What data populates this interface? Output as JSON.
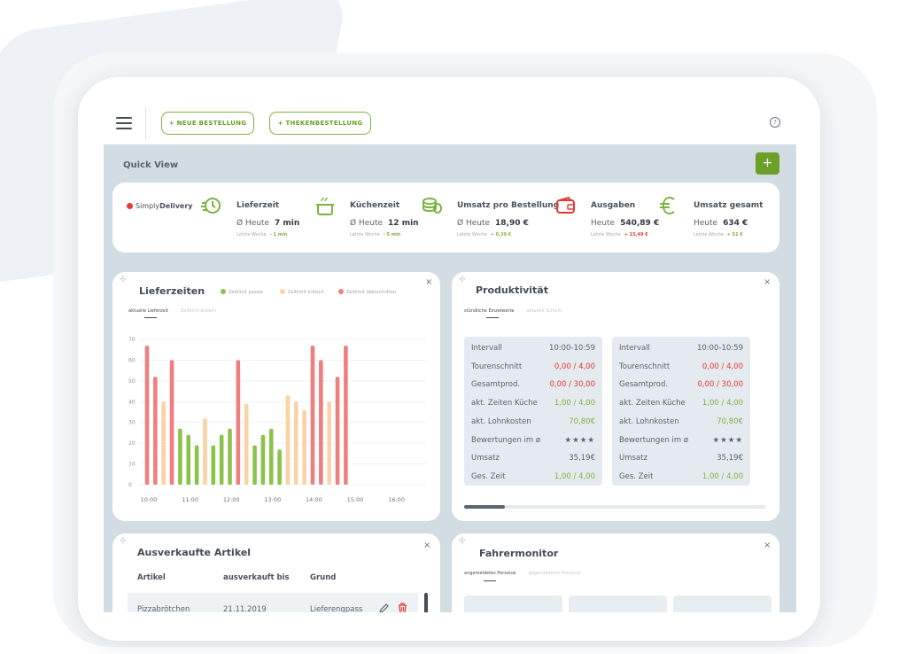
{
  "toolbar": {
    "new_order": "+ NEUE BESTELLUNG",
    "counter_order": "+ THEKENBESTELLUNG",
    "help": "?"
  },
  "quick_view": {
    "title": "Quick View",
    "add": "+",
    "logo_plain": "Simply",
    "logo_bold": "Delivery",
    "kpis": [
      {
        "label": "Lieferzeit",
        "prefix": "Ø Heute",
        "value": "7 min",
        "sub_prefix": "Letzte Woche",
        "delta": "- 1 min",
        "delta_color": "#7cb342",
        "icon": "clock-icon"
      },
      {
        "label": "Küchenzeit",
        "prefix": "Ø Heute",
        "value": "12 min",
        "sub_prefix": "Letzte Woche",
        "delta": "- 5 min",
        "delta_color": "#7cb342",
        "icon": "pot-icon"
      },
      {
        "label": "Umsatz pro Bestellung",
        "prefix": "Ø Heute",
        "value": "18,90 €",
        "sub_prefix": "Letzte Woche",
        "delta": "+ 0,39 €",
        "delta_color": "#7cb342",
        "icon": "coins-icon"
      },
      {
        "label": "Ausgaben",
        "prefix": "Heute",
        "value": "540,89 €",
        "sub_prefix": "Letzte Woche",
        "delta": "+ 15,49 €",
        "delta_color": "#e53935",
        "icon": "wallet-icon"
      },
      {
        "label": "Umsatz gesamt",
        "prefix": "Heute",
        "value": "634 €",
        "sub_prefix": "Letzte Woche",
        "delta": "+ 51 €",
        "delta_color": "#7cb342",
        "icon": "euro-icon"
      }
    ]
  },
  "lieferzeiten": {
    "title": "Lieferzeiten",
    "close": "×",
    "tabs": [
      "aktuelle Lieferzeit",
      "Zeitlimit ändern"
    ],
    "legend": [
      {
        "label": "Zeitlimit passte",
        "color": "#8bc34a"
      },
      {
        "label": "Zeitlimit kritisch",
        "color": "#f8d4a4"
      },
      {
        "label": "Zeitlimit überschritten",
        "color": "#ef7f7f"
      }
    ]
  },
  "chart_data": {
    "type": "bar",
    "title": "Lieferzeiten",
    "y_ticks": [
      0,
      10,
      20,
      30,
      40,
      50,
      60,
      70
    ],
    "x_ticks": [
      "10:00",
      "11:00",
      "12:00",
      "13:00",
      "14:00",
      "15:00",
      "16:00"
    ],
    "ylim": [
      0,
      70
    ],
    "grid": true,
    "legend_position": "top",
    "values": [
      67,
      52,
      40,
      60,
      27,
      24,
      19,
      32,
      19,
      24,
      27,
      60,
      39,
      19,
      24,
      27,
      17,
      43,
      40,
      36,
      67,
      60,
      40,
      52,
      67
    ],
    "status": [
      "r",
      "r",
      "y",
      "r",
      "g",
      "g",
      "g",
      "y",
      "g",
      "g",
      "g",
      "r",
      "y",
      "g",
      "g",
      "g",
      "g",
      "y",
      "y",
      "y",
      "r",
      "r",
      "y",
      "r",
      "r"
    ],
    "status_colors": {
      "g": "#8bc34a",
      "y": "#f8d4a4",
      "r": "#ef7f7f"
    }
  },
  "produktivitaet": {
    "title": "Produktivität",
    "close": "×",
    "tabs": [
      "stündliche Einzelwerte",
      "aktuelle Schicht"
    ],
    "panels": [
      {
        "rows": [
          {
            "label": "Intervall",
            "value": "10:00-10:59",
            "tone": "plain"
          },
          {
            "label": "Tourenschnitt",
            "value": "0,00 / 4,00",
            "tone": "red"
          },
          {
            "label": "Gesamtprod.",
            "value": "0,00 / 30,00",
            "tone": "red"
          },
          {
            "label": "akt. Zeiten Küche",
            "value": "1,00 / 4,00",
            "tone": "green"
          },
          {
            "label": "akt. Lohnkosten",
            "value": "70,80€",
            "tone": "green"
          },
          {
            "label": "Bewertungen im ø",
            "value": "★★★★",
            "tone": "stars"
          },
          {
            "label": "Umsatz",
            "value": "35,19€",
            "tone": "plain"
          },
          {
            "label": "Ges. Zeit",
            "value": "1,00 / 4,00",
            "tone": "green"
          }
        ]
      },
      {
        "rows": [
          {
            "label": "Intervall",
            "value": "10:00-10:59",
            "tone": "plain"
          },
          {
            "label": "Tourenschnitt",
            "value": "0,00 / 4,00",
            "tone": "red"
          },
          {
            "label": "Gesamtprod.",
            "value": "0,00 / 30,00",
            "tone": "red"
          },
          {
            "label": "akt. Zeiten Küche",
            "value": "1,00 / 4,00",
            "tone": "green"
          },
          {
            "label": "akt. Lohnkosten",
            "value": "70,80€",
            "tone": "green"
          },
          {
            "label": "Bewertungen im ø",
            "value": "★★★★",
            "tone": "stars"
          },
          {
            "label": "Umsatz",
            "value": "35,19€",
            "tone": "plain"
          },
          {
            "label": "Ges. Zeit",
            "value": "1,00 / 4,00",
            "tone": "green"
          }
        ]
      }
    ]
  },
  "ausverkauft": {
    "title": "Ausverkaufte Artikel",
    "close": "×",
    "headers": [
      "Artikel",
      "ausverkauft bis",
      "Grund"
    ],
    "rows": [
      {
        "artikel": "Pizzabrötchen",
        "bis": "21.11.2019",
        "grund": "Lieferengpass"
      }
    ]
  },
  "fahrermonitor": {
    "title": "Fahrermonitor",
    "close": "×",
    "tabs": [
      "angemeldetes Personal",
      "abgemeldetes Personal"
    ]
  }
}
